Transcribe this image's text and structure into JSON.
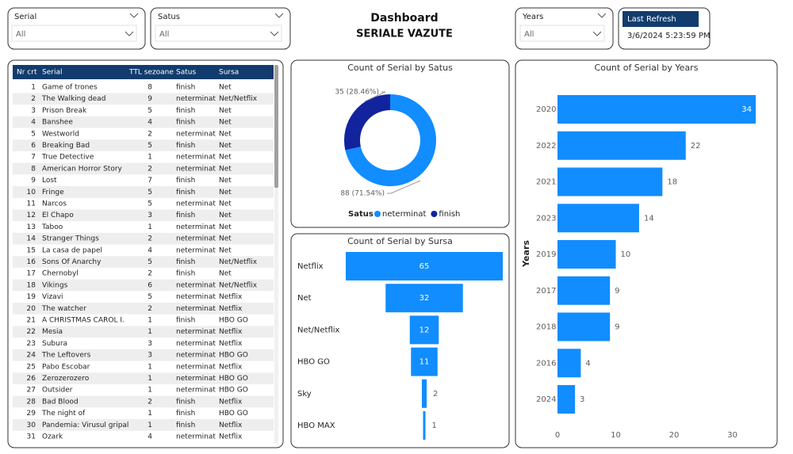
{
  "header": {
    "title": "Dashboard",
    "subtitle": "SERIALE VAZUTE"
  },
  "filters": [
    {
      "label": "Serial",
      "value": "All"
    },
    {
      "label": "Satus",
      "value": "All"
    },
    {
      "label": "Years",
      "value": "All"
    }
  ],
  "last_refresh": {
    "label": "Last Refresh",
    "value": "3/6/2024 5:23:59 PM"
  },
  "table": {
    "columns": [
      "Nr crt",
      "Serial",
      "TTL sezoane",
      "Satus",
      "Sursa"
    ],
    "rows": [
      [
        1,
        "Game of trones",
        8,
        "finish",
        "Net"
      ],
      [
        2,
        "The Walking dead",
        9,
        "neterminat",
        "Net/Netflix"
      ],
      [
        3,
        "Prison Break",
        5,
        "finish",
        "Net"
      ],
      [
        4,
        "Banshee",
        4,
        "finish",
        "Net"
      ],
      [
        5,
        "Westworld",
        2,
        "neterminat",
        "Net"
      ],
      [
        6,
        "Breaking Bad",
        5,
        "finish",
        "Net"
      ],
      [
        7,
        "True Detective",
        1,
        "neterminat",
        "Net"
      ],
      [
        8,
        "American Horror Story",
        2,
        "neterminat",
        "Net"
      ],
      [
        9,
        "Lost",
        7,
        "finish",
        "Net"
      ],
      [
        10,
        "Fringe",
        5,
        "finish",
        "Net"
      ],
      [
        11,
        "Narcos",
        5,
        "neterminat",
        "Net"
      ],
      [
        12,
        "El Chapo",
        3,
        "finish",
        "Net"
      ],
      [
        13,
        "Taboo",
        1,
        "neterminat",
        "Net"
      ],
      [
        14,
        "Stranger Things",
        2,
        "neterminat",
        "Net"
      ],
      [
        15,
        "La casa de papel",
        4,
        "neterminat",
        "Net"
      ],
      [
        16,
        "Sons Of Anarchy",
        5,
        "finish",
        "Net/Netflix"
      ],
      [
        17,
        "Chernobyl",
        2,
        "finish",
        "Net"
      ],
      [
        18,
        "Vikings",
        6,
        "neterminat",
        "Net/Netflix"
      ],
      [
        19,
        "Vizavi",
        5,
        "neterminat",
        "Netflix"
      ],
      [
        20,
        "The watcher",
        2,
        "neterminat",
        "Netflix"
      ],
      [
        21,
        "A CHRISTMAS CAROL I.",
        1,
        "finish",
        "HBO GO"
      ],
      [
        22,
        "Mesia",
        1,
        "neterminat",
        "Netflix"
      ],
      [
        23,
        "Subura",
        3,
        "neterminat",
        "Netflix"
      ],
      [
        24,
        "The Leftovers",
        3,
        "neterminat",
        "HBO GO"
      ],
      [
        25,
        "Pabo Escobar",
        1,
        "neterminat",
        "Netflix"
      ],
      [
        26,
        "Zerozerozero",
        1,
        "neterminat",
        "HBO GO"
      ],
      [
        27,
        "Outsider",
        1,
        "neterminat",
        "HBO GO"
      ],
      [
        28,
        "Bad Blood",
        2,
        "finish",
        "Netflix"
      ],
      [
        29,
        "The night of",
        1,
        "finish",
        "HBO GO"
      ],
      [
        30,
        "Pandemia: Virusul gripal",
        1,
        "finish",
        "Netflix"
      ],
      [
        31,
        "Ozark",
        4,
        "neterminat",
        "Netflix"
      ]
    ]
  },
  "chart_data": [
    {
      "type": "donut",
      "title": "Count of Serial by Satus",
      "legend_title": "Satus",
      "categories": [
        "neterminat",
        "finish"
      ],
      "values": [
        88,
        35
      ],
      "value_labels": [
        "88 (71.54%)",
        "35 (28.46%)"
      ],
      "colors": [
        "#118DFF",
        "#12239E"
      ]
    },
    {
      "type": "funnel",
      "title": "Count of Serial by Sursa",
      "categories": [
        "Netflix",
        "Net",
        "Net/Netflix",
        "HBO GO",
        "Sky",
        "HBO MAX"
      ],
      "values": [
        65,
        32,
        12,
        11,
        2,
        1
      ],
      "color": "#118DFF"
    },
    {
      "type": "bar",
      "orientation": "horizontal",
      "title": "Count of Serial by Years",
      "y_label": "Years",
      "categories": [
        "2020",
        "2022",
        "2021",
        "2023",
        "2019",
        "2017",
        "2018",
        "2016",
        "2024"
      ],
      "values": [
        34,
        22,
        18,
        14,
        10,
        9,
        9,
        4,
        3
      ],
      "color": "#118DFF",
      "xlim": [
        0,
        34
      ],
      "xticks": [
        0,
        10,
        20,
        30
      ],
      "grid": false
    }
  ]
}
